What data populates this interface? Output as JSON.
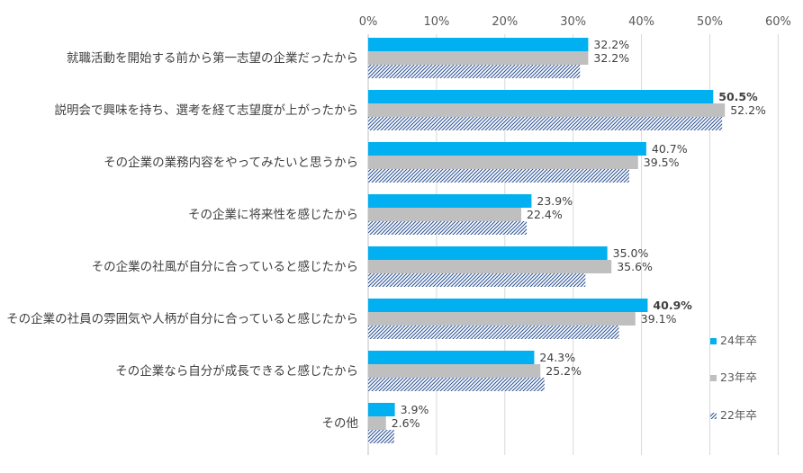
{
  "chart_data": {
    "type": "bar",
    "orientation": "horizontal",
    "x_ticks": [
      "0%",
      "10%",
      "20%",
      "30%",
      "40%",
      "50%",
      "60%"
    ],
    "xlim": [
      0,
      60
    ],
    "categories": [
      "就職活動を開始する前から第一志望の企業だったから",
      "説明会で興味を持ち、選考を経て志望度が上がったから",
      "その企業の業務内容をやってみたいと思うから",
      "その企業に将来性を感じたから",
      "その企業の社風が自分に合っていると感じたから",
      "その企業の社員の雰囲気や人柄が自分に合っていると感じたから",
      "その企業なら自分が成長できると感じたから",
      "その他"
    ],
    "series": [
      {
        "name": "24年卒",
        "color": "#00B0F0",
        "values": [
          32.2,
          50.5,
          40.7,
          23.9,
          35.0,
          40.9,
          24.3,
          3.9
        ],
        "labels": [
          "32.2%",
          "50.5%",
          "40.7%",
          "23.9%",
          "35.0%",
          "40.9%",
          "24.3%",
          "3.9%"
        ]
      },
      {
        "name": "23年卒",
        "color": "#BFBFBF",
        "values": [
          32.2,
          52.2,
          39.5,
          22.4,
          35.6,
          39.1,
          25.2,
          2.6
        ],
        "labels": [
          "32.2%",
          "52.2%",
          "39.5%",
          "22.4%",
          "35.6%",
          "39.1%",
          "25.2%",
          "2.6%"
        ]
      },
      {
        "name": "22年卒",
        "color": "#2F5597",
        "pattern": "diagonal-hatch",
        "values": [
          31.0,
          51.8,
          38.2,
          23.2,
          31.8,
          36.7,
          25.8,
          3.8
        ]
      }
    ],
    "bold_labels": [
      "50.5%",
      "40.9%"
    ],
    "legend_position": "bottom-right"
  }
}
